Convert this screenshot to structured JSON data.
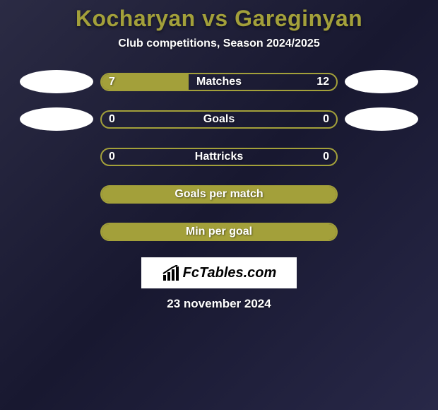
{
  "title": "Kocharyan vs Gareginyan",
  "subtitle": "Club competitions, Season 2024/2025",
  "background_color": "#1a1a2e",
  "accent_color": "#a3a03a",
  "text_color": "#ffffff",
  "bar_border_color": "#a3a03a",
  "bar_fill_color": "#a3a03a",
  "ellipse_color": "#ffffff",
  "branding_bg": "#ffffff",
  "branding": "FcTables.com",
  "date": "23 november 2024",
  "stats": [
    {
      "label": "Matches",
      "left_value": "7",
      "right_value": "12",
      "left_fill_pct": 37,
      "has_left_ellipse": true,
      "has_right_ellipse": true
    },
    {
      "label": "Goals",
      "left_value": "0",
      "right_value": "0",
      "left_fill_pct": 0,
      "has_left_ellipse": true,
      "has_right_ellipse": true
    },
    {
      "label": "Hattricks",
      "left_value": "0",
      "right_value": "0",
      "left_fill_pct": 0,
      "has_left_ellipse": false,
      "has_right_ellipse": false
    },
    {
      "label": "Goals per match",
      "left_value": "",
      "right_value": "",
      "left_fill_pct": 100,
      "has_left_ellipse": false,
      "has_right_ellipse": false
    },
    {
      "label": "Min per goal",
      "left_value": "",
      "right_value": "",
      "left_fill_pct": 100,
      "has_left_ellipse": false,
      "has_right_ellipse": false
    }
  ]
}
